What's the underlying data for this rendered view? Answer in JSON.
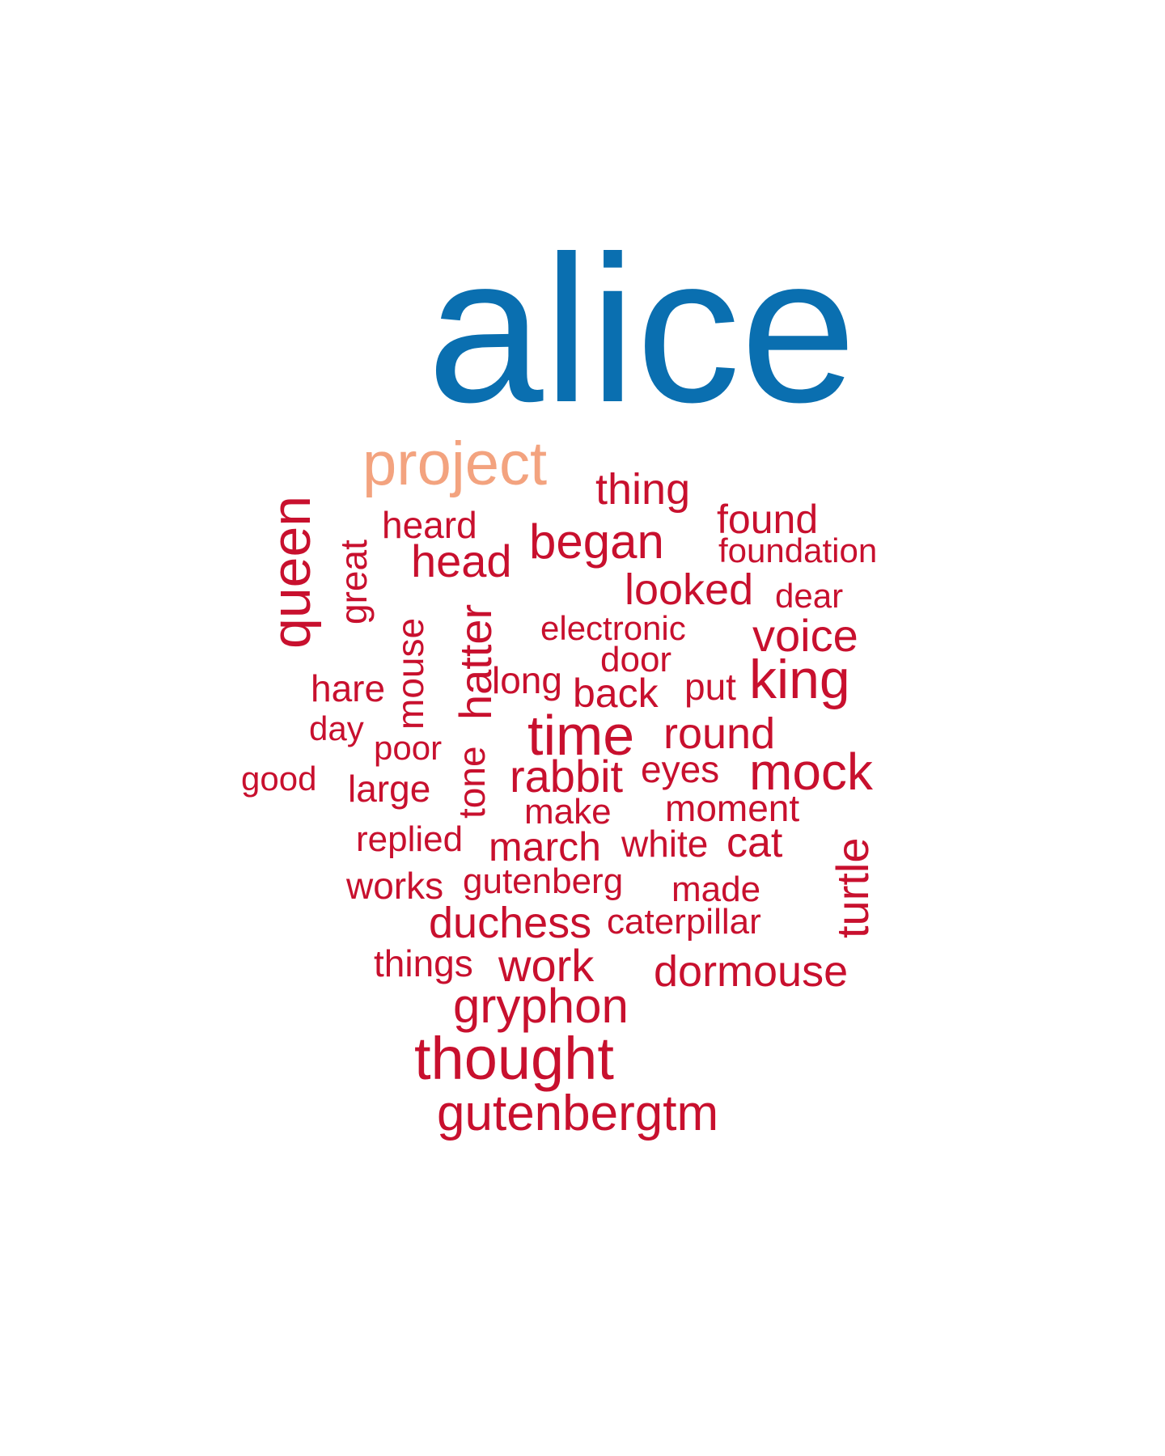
{
  "wordcloud": {
    "colors": {
      "primary": "#0a6fb0",
      "secondary": "#f3a37f",
      "base": "#c8102e"
    },
    "words": {
      "alice": "alice",
      "project": "project",
      "thing": "thing",
      "found": "found",
      "foundation": "foundation",
      "heard": "heard",
      "began": "began",
      "head": "head",
      "great": "great",
      "queen": "queen",
      "looked": "looked",
      "dear": "dear",
      "electronic": "electronic",
      "voice": "voice",
      "mouse": "mouse",
      "hatter": "hatter",
      "door": "door",
      "long": "long",
      "hare": "hare",
      "back": "back",
      "put": "put",
      "king": "king",
      "day": "day",
      "time": "time",
      "round": "round",
      "poor": "poor",
      "tone": "tone",
      "good": "good",
      "rabbit": "rabbit",
      "eyes": "eyes",
      "mock": "mock",
      "large": "large",
      "make": "make",
      "moment": "moment",
      "replied": "replied",
      "march": "march",
      "white": "white",
      "cat": "cat",
      "turtle": "turtle",
      "works": "works",
      "gutenberg": "gutenberg",
      "made": "made",
      "duchess": "duchess",
      "caterpillar": "caterpillar",
      "things": "things",
      "work": "work",
      "dormouse": "dormouse",
      "gryphon": "gryphon",
      "thought": "thought",
      "gutenbergtm": "gutenbergtm"
    }
  }
}
